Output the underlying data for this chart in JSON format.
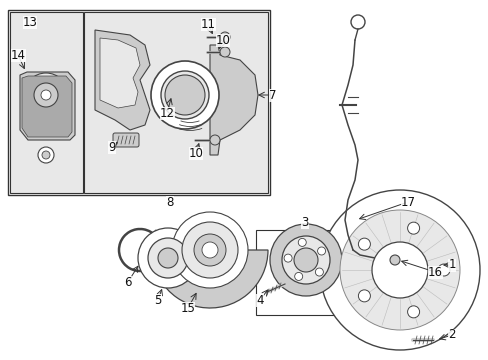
{
  "background_color": "#ffffff",
  "fig_width": 4.89,
  "fig_height": 3.6,
  "dpi": 100,
  "box_color": "#333333",
  "line_color": "#444444",
  "fill_light": "#e8e8e8",
  "fill_mid": "#cccccc",
  "fill_dark": "#aaaaaa",
  "label_fontsize": 8.5
}
